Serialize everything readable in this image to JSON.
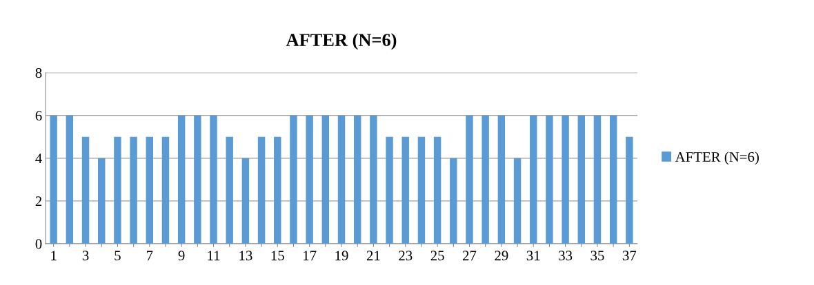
{
  "chart_data": {
    "type": "bar",
    "title": "AFTER (N=6)",
    "categories": [
      "1",
      null,
      "3",
      null,
      "5",
      null,
      "7",
      null,
      "9",
      null,
      "11",
      null,
      "13",
      null,
      "15",
      null,
      "17",
      null,
      "19",
      null,
      "21",
      null,
      "23",
      null,
      "25",
      null,
      "27",
      null,
      "29",
      null,
      "31",
      null,
      "33",
      null,
      "35",
      null,
      "37"
    ],
    "series": [
      {
        "name": "AFTER (N=6)",
        "color": "#5b9bd5",
        "values": [
          6,
          6,
          5,
          4,
          5,
          5,
          5,
          5,
          6,
          6,
          6,
          5,
          4,
          5,
          5,
          6,
          6,
          6,
          6,
          6,
          6,
          5,
          5,
          5,
          5,
          4,
          6,
          6,
          6,
          4,
          6,
          6,
          6,
          6,
          6,
          6,
          5
        ]
      }
    ],
    "ylim": [
      0,
      8
    ],
    "yticks": [
      0,
      2,
      4,
      6,
      8
    ],
    "grid": "y",
    "legend": "right"
  }
}
